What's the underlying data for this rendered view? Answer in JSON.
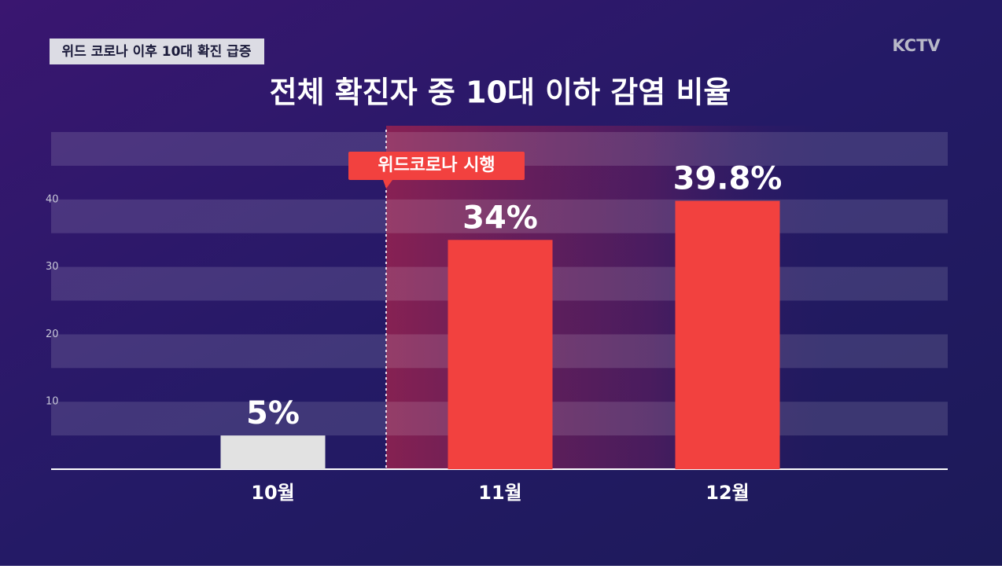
{
  "chart_data": {
    "type": "bar",
    "tag": "위드 코로나 이후 10대 확진 급증",
    "logo": "KCTV",
    "title": "전체 확진자 중 10대 이하 감염 비율",
    "annotation": "위드코로나 시행",
    "categories": [
      "10월",
      "11월",
      "12월"
    ],
    "values": [
      5,
      34,
      39.8
    ],
    "value_labels": [
      "5%",
      "34%",
      "39.8%"
    ],
    "colors": [
      "#e2e2e2",
      "#f2413f",
      "#f2413f"
    ],
    "ylim": [
      0,
      50
    ],
    "yticks": [
      10,
      20,
      30,
      40
    ],
    "grid": true
  }
}
